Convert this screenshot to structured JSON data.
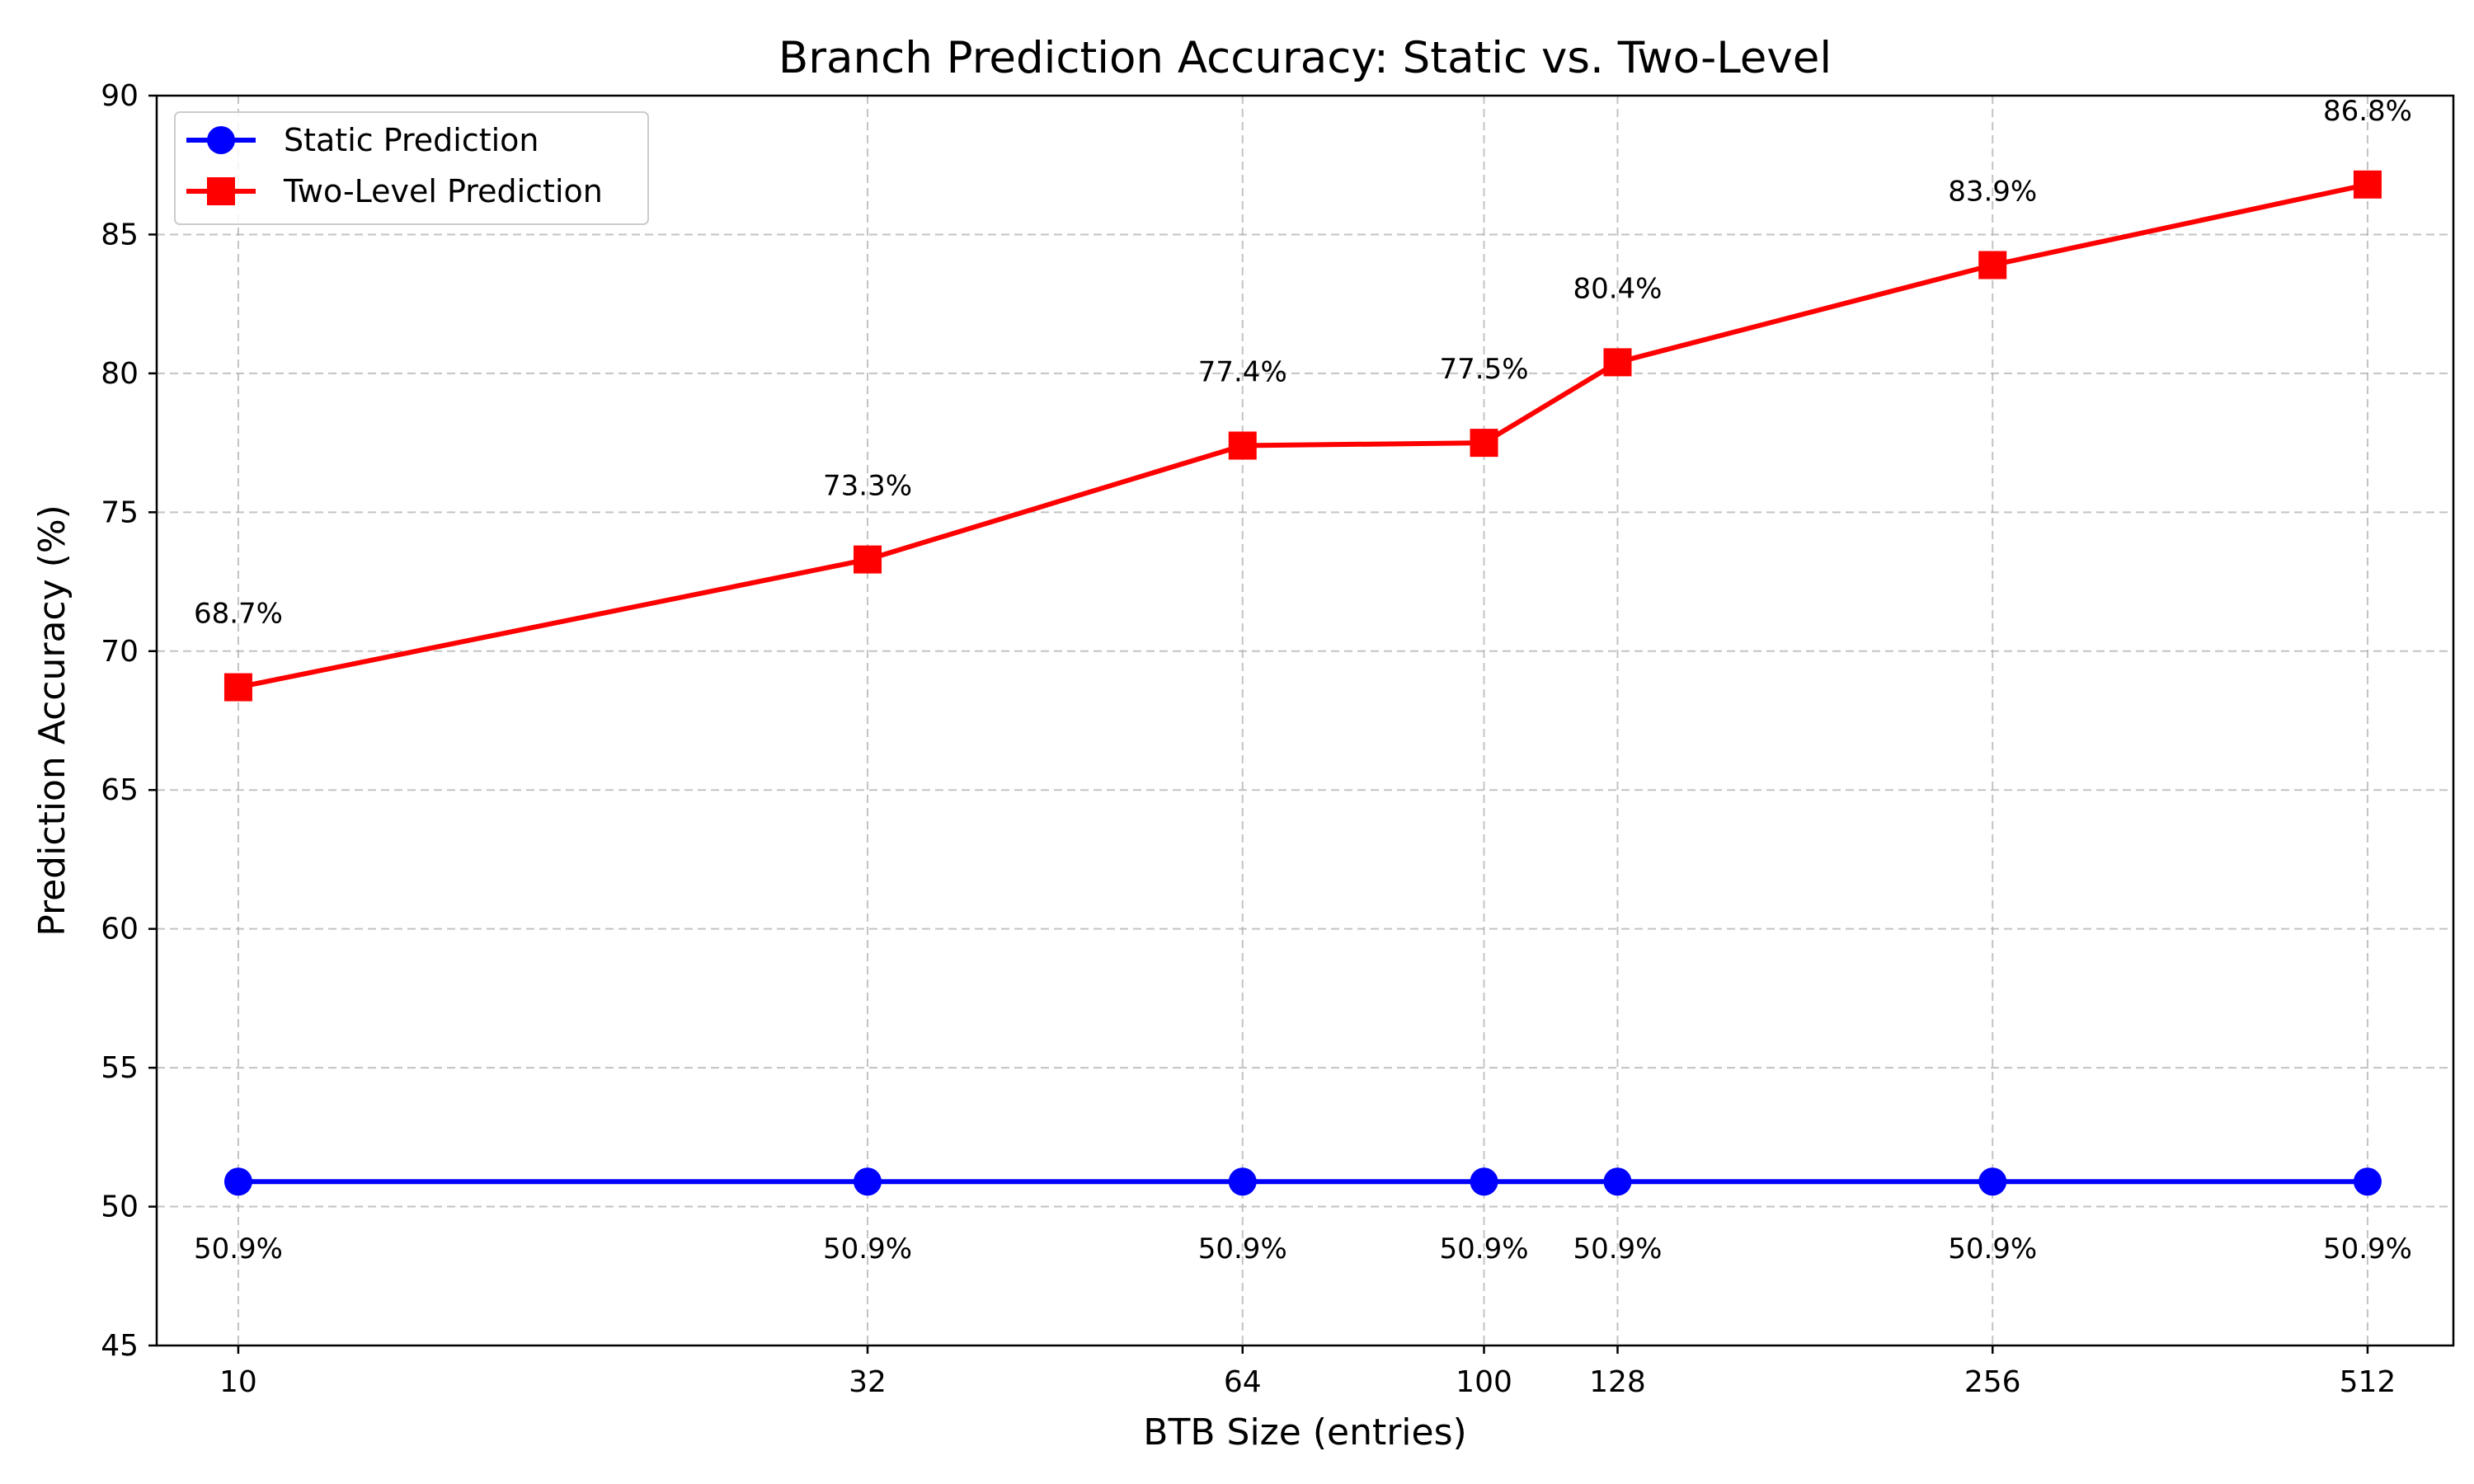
{
  "chart_data": {
    "type": "line",
    "title": "Branch Prediction Accuracy: Static vs. Two-Level",
    "xlabel": "BTB Size (entries)",
    "ylabel": "Prediction Accuracy (%)",
    "x_scale": "log2",
    "x": [
      10,
      32,
      64,
      100,
      128,
      256,
      512
    ],
    "x_tick_labels": [
      "10",
      "32",
      "64",
      "100",
      "128",
      "256",
      "512"
    ],
    "xlim": [
      8.6,
      600
    ],
    "ylim": [
      45,
      90
    ],
    "y_ticks": [
      45,
      50,
      55,
      60,
      65,
      70,
      75,
      80,
      85,
      90
    ],
    "y_tick_labels": [
      "45",
      "50",
      "55",
      "60",
      "65",
      "70",
      "75",
      "80",
      "85",
      "90"
    ],
    "grid": true,
    "legend_position": "upper-left",
    "series": [
      {
        "name": "Static Prediction",
        "color": "#0000ff",
        "marker": "circle",
        "values": [
          50.9,
          50.9,
          50.9,
          50.9,
          50.9,
          50.9,
          50.9
        ],
        "labels": [
          "50.9%",
          "50.9%",
          "50.9%",
          "50.9%",
          "50.9%",
          "50.9%",
          "50.9%"
        ],
        "label_position": "below"
      },
      {
        "name": "Two-Level Prediction",
        "color": "#ff0000",
        "marker": "square",
        "values": [
          68.7,
          73.3,
          77.4,
          77.5,
          80.4,
          83.9,
          86.8
        ],
        "labels": [
          "68.7%",
          "73.3%",
          "77.4%",
          "77.5%",
          "80.4%",
          "83.9%",
          "86.8%"
        ],
        "label_position": "above"
      }
    ]
  }
}
